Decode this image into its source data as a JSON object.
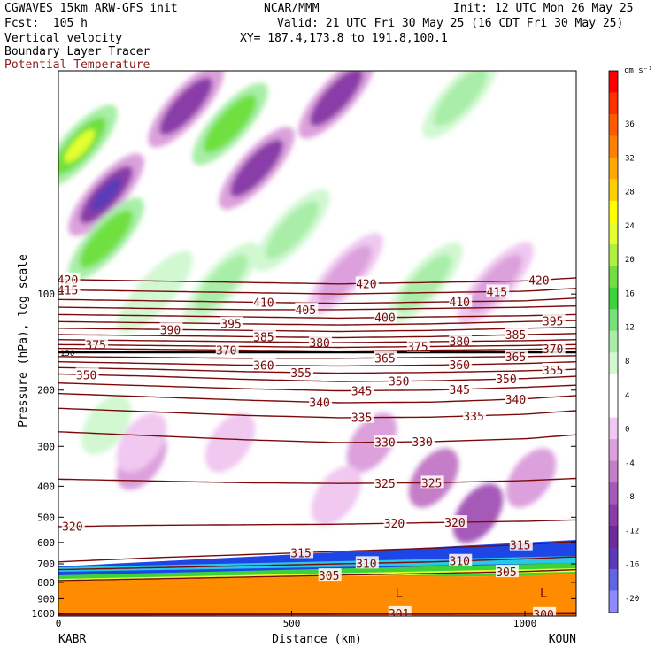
{
  "header": {
    "model": "CGWAVES 15km ARW-GFS init",
    "center": "NCAR/MMM",
    "init": "Init: 12 UTC Mon 26 May 25",
    "fcst": "Fcst:  105 h",
    "valid": "Valid: 21 UTC Fri 30 May 25 (16 CDT Fri 30 May 25)",
    "line_vv": "Vertical velocity",
    "line_xy": "XY= 187.4,173.8 to 191.8,100.1",
    "line_blt": "Boundary Layer Tracer",
    "line_pt": "Potential Temperature"
  },
  "chart_data": {
    "type": "heatmap",
    "xlabel": "Distance (km)",
    "ylabel": "Pressure (hPa), log scale",
    "x_ticks": [
      0,
      500,
      1000
    ],
    "x_range": [
      0,
      1110
    ],
    "y_ticks": [
      100,
      200,
      300,
      400,
      500,
      600,
      700,
      800,
      900,
      1000
    ],
    "y_range": [
      20,
      1020
    ],
    "y_scale": "log",
    "endpoints": {
      "left": "KABR",
      "right": "KOUN"
    },
    "colorbar": {
      "unit": "cm s⁻¹",
      "ticks": [
        "36",
        "32",
        "28",
        "24",
        "20",
        "16",
        "12",
        "8",
        "4",
        "0",
        "-4",
        "-8",
        "-12",
        "-16",
        "-20"
      ],
      "colors": [
        "#ff0000",
        "#ff3000",
        "#ff5a00",
        "#ff8000",
        "#ffaa00",
        "#ffd000",
        "#ffff00",
        "#e6ff2e",
        "#b0f040",
        "#70e040",
        "#3cd23c",
        "#78e078",
        "#a8eea8",
        "#d2f8d2",
        "#ffffff",
        "#ffffff",
        "#f0c8f0",
        "#dca0dc",
        "#c47ec8",
        "#a65ab8",
        "#8a3ca8",
        "#6e2a9a",
        "#5a3ab8",
        "#6464e6",
        "#8c8cff"
      ]
    },
    "tropopause_label": "150",
    "tropopause_p": 152,
    "theta_contours": [
      {
        "v": "420",
        "x": [
          0,
          200,
          400,
          600,
          800,
          1000,
          1110
        ],
        "p": [
          90,
          91,
          92,
          93,
          92,
          91,
          89
        ],
        "labels": [
          [
            20,
            0.93
          ],
          [
            660,
            0.95
          ],
          [
            1030,
            0.93
          ]
        ]
      },
      {
        "v": "415",
        "x": [
          0,
          200,
          400,
          600,
          800,
          1000,
          1110
        ],
        "p": [
          97,
          98,
          99,
          100,
          99,
          98,
          96
        ],
        "labels": [
          [
            20,
            1.0
          ],
          [
            940,
            1.0
          ]
        ]
      },
      {
        "v": "410",
        "x": [
          0,
          200,
          400,
          600,
          800,
          1000,
          1110
        ],
        "p": [
          104,
          105,
          106,
          107,
          106,
          105,
          103
        ],
        "labels": [
          [
            440,
            1.0
          ],
          [
            860,
            1.0
          ]
        ]
      },
      {
        "v": "405",
        "x": [
          0,
          200,
          400,
          600,
          800,
          1000,
          1110
        ],
        "p": [
          110,
          111,
          112,
          112,
          111,
          110,
          109
        ],
        "labels": [
          [
            530,
            1.0
          ]
        ]
      },
      {
        "v": "400",
        "x": [
          0,
          200,
          400,
          600,
          800,
          1000,
          1110
        ],
        "p": [
          116,
          117,
          118,
          119,
          118,
          117,
          116
        ],
        "labels": [
          [
            700,
            1.0
          ]
        ]
      },
      {
        "v": "395",
        "x": [
          0,
          200,
          400,
          600,
          800,
          1000,
          1110
        ],
        "p": [
          122,
          123,
          124,
          125,
          124,
          122,
          121
        ],
        "labels": [
          [
            370,
            1.0
          ],
          [
            1060,
            1.0
          ]
        ]
      },
      {
        "v": "390",
        "x": [
          0,
          200,
          400,
          600,
          800,
          1000,
          1110
        ],
        "p": [
          128,
          129,
          130,
          131,
          130,
          128,
          127
        ],
        "labels": [
          [
            240,
            1.0
          ]
        ]
      },
      {
        "v": "385",
        "x": [
          0,
          200,
          400,
          600,
          800,
          1000,
          1110
        ],
        "p": [
          134,
          135,
          136,
          137,
          136,
          134,
          133
        ],
        "labels": [
          [
            440,
            1.0
          ],
          [
            980,
            1.0
          ]
        ]
      },
      {
        "v": "380",
        "x": [
          0,
          200,
          400,
          600,
          800,
          1000,
          1110
        ],
        "p": [
          139,
          140,
          141,
          142,
          141,
          140,
          139
        ],
        "labels": [
          [
            560,
            1.0
          ],
          [
            860,
            1.0
          ]
        ]
      },
      {
        "v": "375",
        "x": [
          0,
          200,
          400,
          600,
          800,
          1000,
          1110
        ],
        "p": [
          144,
          145,
          146,
          147,
          146,
          145,
          144
        ],
        "labels": [
          [
            80,
            1.0
          ],
          [
            770,
            1.0
          ]
        ]
      },
      {
        "v": "370",
        "x": [
          0,
          200,
          400,
          600,
          800,
          1000,
          1110
        ],
        "p": [
          148,
          149,
          150,
          151,
          150,
          149,
          148
        ],
        "labels": [
          [
            360,
            1.0
          ],
          [
            1060,
            1.0
          ]
        ]
      },
      {
        "v": "365",
        "x": [
          0,
          200,
          400,
          600,
          800,
          1000,
          1110
        ],
        "p": [
          157,
          158,
          159,
          159,
          158,
          157,
          156
        ],
        "labels": [
          [
            700,
            1.0
          ],
          [
            980,
            1.0
          ]
        ]
      },
      {
        "v": "360",
        "x": [
          0,
          200,
          400,
          600,
          800,
          1000,
          1110
        ],
        "p": [
          163,
          165,
          167,
          168,
          167,
          165,
          163
        ],
        "labels": [
          [
            440,
            1.0
          ],
          [
            860,
            1.0
          ]
        ]
      },
      {
        "v": "355",
        "x": [
          0,
          200,
          400,
          600,
          800,
          1000,
          1110
        ],
        "p": [
          170,
          172,
          175,
          177,
          176,
          174,
          172
        ],
        "labels": [
          [
            520,
            1.0
          ],
          [
            1060,
            1.0
          ]
        ]
      },
      {
        "v": "350",
        "x": [
          0,
          200,
          400,
          600,
          800,
          1000,
          1110
        ],
        "p": [
          178,
          181,
          185,
          188,
          187,
          184,
          181
        ],
        "labels": [
          [
            60,
            1.0
          ],
          [
            730,
            1.0
          ],
          [
            960,
            1.0
          ]
        ]
      },
      {
        "v": "345",
        "x": [
          0,
          200,
          400,
          600,
          800,
          1000,
          1110
        ],
        "p": [
          190,
          194,
          198,
          201,
          200,
          196,
          193
        ],
        "labels": [
          [
            650,
            1.0
          ],
          [
            860,
            1.0
          ]
        ]
      },
      {
        "v": "340",
        "x": [
          0,
          200,
          400,
          600,
          800,
          1000,
          1110
        ],
        "p": [
          205,
          210,
          215,
          219,
          218,
          213,
          208
        ],
        "labels": [
          [
            560,
            1.0
          ],
          [
            980,
            1.0
          ]
        ]
      },
      {
        "v": "335",
        "x": [
          0,
          200,
          400,
          600,
          800,
          1000,
          1110
        ],
        "p": [
          228,
          234,
          240,
          244,
          243,
          238,
          232
        ],
        "labels": [
          [
            650,
            1.0
          ],
          [
            890,
            1.0
          ]
        ]
      },
      {
        "v": "330",
        "x": [
          0,
          200,
          400,
          600,
          800,
          1000,
          1110
        ],
        "p": [
          270,
          278,
          286,
          292,
          290,
          284,
          276
        ],
        "labels": [
          [
            700,
            1.0
          ],
          [
            780,
            1.0
          ]
        ]
      },
      {
        "v": "325",
        "x": [
          0,
          200,
          400,
          600,
          800,
          1000,
          1110
        ],
        "p": [
          380,
          385,
          390,
          392,
          390,
          384,
          378
        ],
        "labels": [
          [
            700,
            1.0
          ],
          [
            800,
            1.0
          ]
        ]
      },
      {
        "v": "320",
        "x": [
          0,
          200,
          400,
          600,
          800,
          1000,
          1110
        ],
        "p": [
          535,
          530,
          528,
          526,
          520,
          515,
          510
        ],
        "labels": [
          [
            30,
            1.0
          ],
          [
            720,
            1.0
          ],
          [
            850,
            1.0
          ]
        ]
      },
      {
        "v": "315",
        "x": [
          0,
          200,
          400,
          600,
          800,
          1000,
          1110
        ],
        "p": [
          690,
          670,
          655,
          640,
          625,
          610,
          595
        ],
        "labels": [
          [
            520,
            1.0
          ],
          [
            990,
            1.0
          ]
        ]
      },
      {
        "v": "310",
        "x": [
          0,
          200,
          400,
          600,
          800,
          1000,
          1110
        ],
        "p": [
          730,
          720,
          710,
          700,
          690,
          675,
          665
        ],
        "labels": [
          [
            660,
            1.0
          ],
          [
            860,
            1.0
          ]
        ]
      },
      {
        "v": "305",
        "x": [
          0,
          200,
          400,
          600,
          800,
          1000,
          1110
        ],
        "p": [
          790,
          780,
          770,
          760,
          750,
          740,
          730
        ],
        "labels": [
          [
            580,
            1.0
          ],
          [
            960,
            1.0
          ]
        ]
      },
      {
        "v": "301",
        "x": [
          0,
          200,
          400,
          600,
          800,
          1000,
          1110
        ],
        "p": [
          1005,
          1003,
          1002,
          1000,
          1000,
          998,
          995
        ],
        "labels": [
          [
            730,
            1.0
          ]
        ]
      },
      {
        "v": "300",
        "x": [
          0,
          200,
          400,
          600,
          800,
          1000,
          1110
        ],
        "p": [
          1010,
          1010,
          1009,
          1008,
          1007,
          1006,
          1005
        ],
        "labels": [
          [
            1040,
            1.0
          ]
        ]
      }
    ],
    "low_labels": [
      {
        "text": "L",
        "x": 730,
        "p": 890
      },
      {
        "text": "L",
        "x": 1040,
        "p": 890
      }
    ]
  }
}
